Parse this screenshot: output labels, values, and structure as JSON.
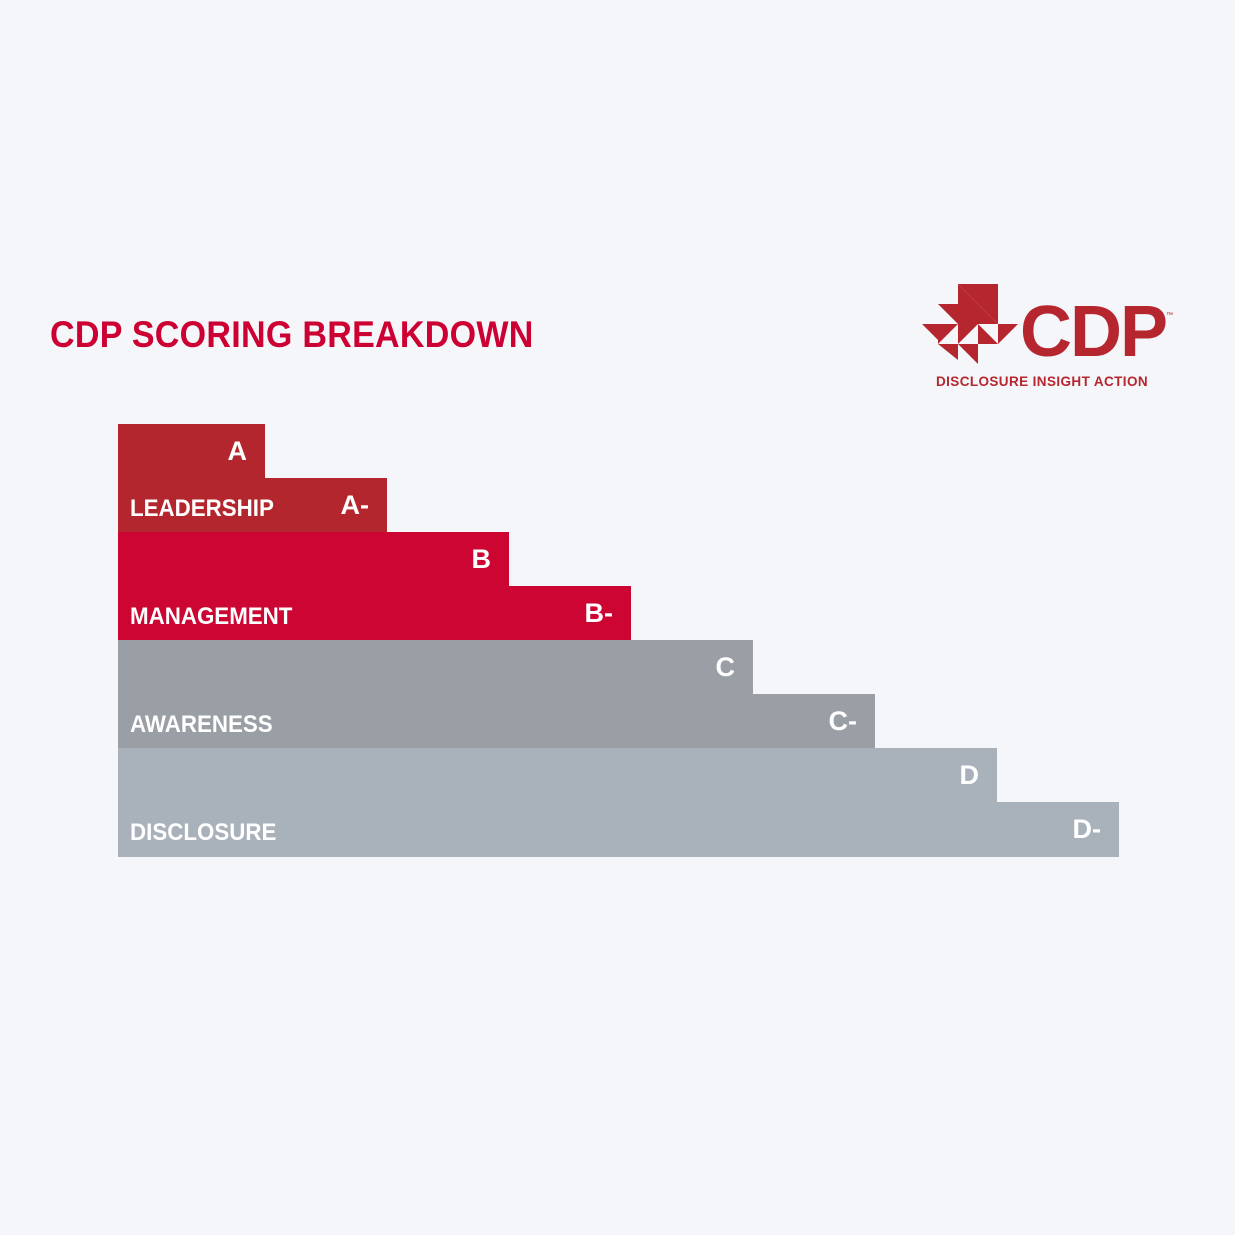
{
  "title": "CDP SCORING BREAKDOWN",
  "logo": {
    "wordmark": "CDP",
    "trademark": "™",
    "tagline": "DISCLOSURE INSIGHT ACTION",
    "icon": "cdp-triangles-icon",
    "color": "#b5262f"
  },
  "chart_data": {
    "type": "bar",
    "orientation": "horizontal-staircase",
    "levels": [
      {
        "name": "LEADERSHIP",
        "color": "#b3262e",
        "grades": [
          "A",
          "A-"
        ],
        "widths": [
          1,
          2
        ]
      },
      {
        "name": "MANAGEMENT",
        "color": "#cc0533",
        "grades": [
          "B",
          "B-"
        ],
        "widths": [
          3,
          4
        ]
      },
      {
        "name": "AWARENESS",
        "color": "#999fa4",
        "grades": [
          "C",
          "C-"
        ],
        "widths": [
          5,
          6
        ]
      },
      {
        "name": "DISCLOSURE",
        "color": "#a9b1ba",
        "grades": [
          "D",
          "D-"
        ],
        "widths": [
          7,
          8
        ]
      }
    ],
    "categories": [
      "A",
      "A-",
      "B",
      "B-",
      "C",
      "C-",
      "D",
      "D-"
    ],
    "values": [
      1,
      2,
      3,
      4,
      5,
      6,
      7,
      8
    ]
  }
}
